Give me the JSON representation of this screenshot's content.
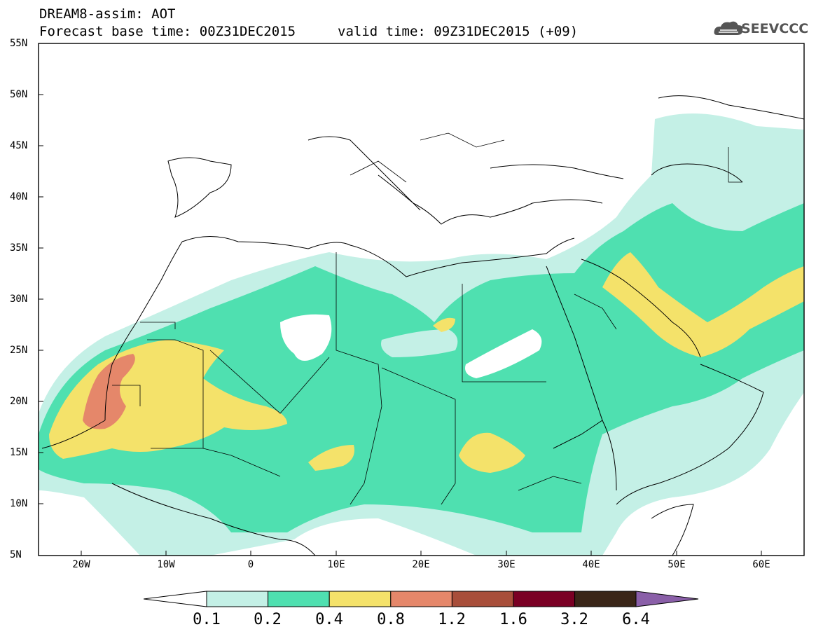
{
  "header": {
    "title": "DREAM8-assim: AOT",
    "base_time": "Forecast base time: 00Z31DEC2015",
    "valid_time": "valid time: 09Z31DEC2015 (+09)",
    "logo_text": "SEEVCCC",
    "logo_icon": "cloud-icon"
  },
  "map": {
    "lon_range": [
      -25,
      65
    ],
    "lat_range": [
      5,
      55
    ],
    "lat_labels": [
      "55N",
      "50N",
      "45N",
      "40N",
      "35N",
      "30N",
      "25N",
      "20N",
      "15N",
      "10N",
      "5N"
    ],
    "lon_labels": [
      "20W",
      "10W",
      "0",
      "10E",
      "20E",
      "30E",
      "40E",
      "50E",
      "60E"
    ],
    "colors": {
      "level_01": "#c4f0e6",
      "level_02": "#4fe0b0",
      "level_04": "#f4e26a",
      "level_08": "#e5876a"
    }
  },
  "colorbar": {
    "labels": [
      "0.1",
      "0.2",
      "0.4",
      "0.8",
      "1.2",
      "1.6",
      "3.2",
      "6.4"
    ],
    "colors": [
      "#c4f0e6",
      "#4fe0b0",
      "#f4e26a",
      "#e5876a",
      "#a84e3a",
      "#7a0024",
      "#3a2618",
      "#8a5fa8"
    ]
  }
}
